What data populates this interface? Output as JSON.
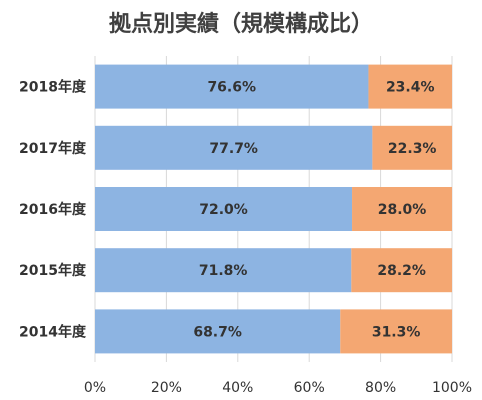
{
  "chart_data": {
    "type": "bar",
    "orientation": "horizontal",
    "stacked": true,
    "title": "拠点別実績（規模構成比）",
    "categories": [
      "2018年度",
      "2017年度",
      "2016年度",
      "2015年度",
      "2014年度"
    ],
    "series": [
      {
        "values": [
          76.6,
          77.7,
          72.0,
          71.8,
          68.7
        ],
        "color": "#8db4e2"
      },
      {
        "values": [
          23.4,
          22.3,
          28.0,
          28.2,
          31.3
        ],
        "color": "#f4a772"
      }
    ],
    "value_labels": [
      [
        "76.6%",
        "77.7%",
        "72.0%",
        "71.8%",
        "68.7%"
      ],
      [
        "23.4%",
        "22.3%",
        "28.0%",
        "28.2%",
        "31.3%"
      ]
    ],
    "xlim": [
      0,
      100
    ],
    "xticks": [
      "0%",
      "20%",
      "40%",
      "60%",
      "80%",
      "100%"
    ],
    "grid": true
  }
}
